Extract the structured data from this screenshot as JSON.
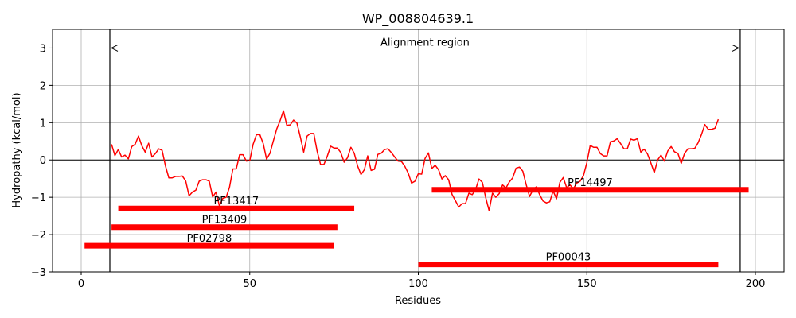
{
  "chart_data": {
    "type": "line",
    "title": "WP_008804639.1",
    "xlabel": "Residues",
    "ylabel": "Hydropathy (kcal/mol)",
    "xlim": [
      -8.5,
      208.5
    ],
    "ylim": [
      -3,
      3.5
    ],
    "xticks": [
      0,
      50,
      100,
      150,
      200
    ],
    "yticks": [
      -3,
      -2,
      -1,
      0,
      1,
      2,
      3
    ],
    "grid": true,
    "line_color": "#ff0000",
    "series": [
      {
        "x_start": 9,
        "values": [
          0.42,
          0.12,
          0.28,
          0.08,
          0.13,
          0.03,
          0.36,
          0.42,
          0.64,
          0.38,
          0.21,
          0.45,
          0.08,
          0.17,
          0.3,
          0.26,
          -0.16,
          -0.48,
          -0.48,
          -0.44,
          -0.44,
          -0.43,
          -0.56,
          -0.96,
          -0.86,
          -0.81,
          -0.57,
          -0.53,
          -0.53,
          -0.57,
          -0.99,
          -0.86,
          -1.23,
          -1.03,
          -1.0,
          -0.73,
          -0.24,
          -0.24,
          0.14,
          0.14,
          -0.03,
          -0.02,
          0.42,
          0.68,
          0.68,
          0.44,
          0.02,
          0.18,
          0.51,
          0.83,
          1.05,
          1.32,
          0.93,
          0.94,
          1.07,
          0.99,
          0.62,
          0.21,
          0.64,
          0.71,
          0.71,
          0.23,
          -0.12,
          -0.12,
          0.1,
          0.37,
          0.32,
          0.32,
          0.2,
          -0.06,
          0.06,
          0.34,
          0.18,
          -0.16,
          -0.39,
          -0.26,
          0.11,
          -0.28,
          -0.25,
          0.15,
          0.18,
          0.28,
          0.3,
          0.2,
          0.08,
          -0.03,
          -0.04,
          -0.17,
          -0.35,
          -0.62,
          -0.57,
          -0.37,
          -0.38,
          0.04,
          0.19,
          -0.23,
          -0.14,
          -0.26,
          -0.51,
          -0.42,
          -0.53,
          -0.92,
          -1.09,
          -1.26,
          -1.17,
          -1.17,
          -0.89,
          -0.93,
          -0.79,
          -0.51,
          -0.6,
          -1.01,
          -1.36,
          -0.89,
          -1.0,
          -0.9,
          -0.67,
          -0.75,
          -0.59,
          -0.48,
          -0.22,
          -0.19,
          -0.3,
          -0.66,
          -0.98,
          -0.8,
          -0.72,
          -0.93,
          -1.1,
          -1.15,
          -1.12,
          -0.83,
          -1.04,
          -0.6,
          -0.47,
          -0.74,
          -0.67,
          -0.77,
          -0.62,
          -0.57,
          -0.42,
          -0.07,
          0.39,
          0.34,
          0.34,
          0.17,
          0.11,
          0.11,
          0.49,
          0.51,
          0.57,
          0.44,
          0.3,
          0.3,
          0.56,
          0.53,
          0.57,
          0.21,
          0.29,
          0.16,
          -0.08,
          -0.34,
          0.0,
          0.13,
          -0.03,
          0.24,
          0.36,
          0.22,
          0.18,
          -0.09,
          0.18,
          0.3,
          0.3,
          0.31,
          0.46,
          0.68,
          0.95,
          0.82,
          0.82,
          0.85,
          1.09
        ]
      }
    ],
    "vlines": [
      8.5,
      195.5
    ],
    "hline": 0,
    "annotation": {
      "text": "Alignment region",
      "x_start": 8.5,
      "x_end": 195.5,
      "y": 3.0
    },
    "domains": [
      {
        "name": "PF14497",
        "start": 104,
        "end": 198,
        "y": -0.8
      },
      {
        "name": "PF13417",
        "start": 11,
        "end": 81,
        "y": -1.3
      },
      {
        "name": "PF13409",
        "start": 9,
        "end": 76,
        "y": -1.8
      },
      {
        "name": "PF02798",
        "start": 1,
        "end": 75,
        "y": -2.3
      },
      {
        "name": "PF00043",
        "start": 100,
        "end": 189,
        "y": -2.8
      }
    ],
    "domain_color": "#ff0000"
  }
}
